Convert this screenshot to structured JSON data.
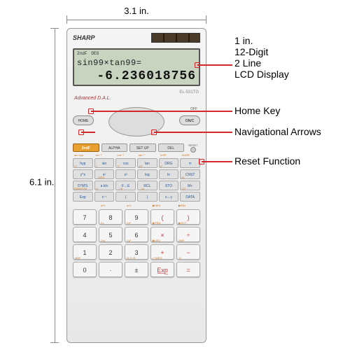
{
  "dimensions": {
    "width_label": "3.1 in.",
    "height_label": "6.1 in."
  },
  "calculator": {
    "brand": "SHARP",
    "model": "EL-531TG",
    "dal_label": "Advanced D.A.L.",
    "lcd": {
      "indicators": [
        "2ndF",
        "DEG"
      ],
      "expression": "sin99×tan99=",
      "result": "-6.236018756"
    },
    "nav": {
      "home_label": "HOME",
      "onc_label": "ON/C",
      "off_label": "OFF",
      "ca_label": "CA",
      "mode_label": "MODE"
    },
    "row2": {
      "second_f": "2ndF",
      "alpha": "ALPHA",
      "alpha_sup": "STAT VAR",
      "setup": "SET UP",
      "del": "DEL",
      "del_sup": "INS",
      "reset_label": "RESET"
    },
    "fn_rows": [
      [
        {
          "l": "hyp",
          "s": "arc hyp"
        },
        {
          "l": "sin",
          "s": "sin⁻¹"
        },
        {
          "l": "cos",
          "s": "cos⁻¹"
        },
        {
          "l": "tan",
          "s": "tan⁻¹"
        },
        {
          "l": "DRG",
          "s": "XOR"
        },
        {
          "l": "π",
          "s": "XNOR"
        }
      ],
      [
        {
          "l": "y^x",
          "s": "ˣ√"
        },
        {
          "l": "x²",
          "s": "√"
        },
        {
          "l": "x³",
          "s": "³√"
        },
        {
          "l": "log",
          "s": "10ˣ"
        },
        {
          "l": "ln",
          "s": "eˣ"
        },
        {
          "l": "CNST",
          "s": ""
        }
      ],
      [
        {
          "l": "D°M'S",
          "s": "←"
        },
        {
          "l": "a b/c",
          "s": "→DEG"
        },
        {
          "l": "F↔E",
          "s": ""
        },
        {
          "l": "RCL",
          "s": ""
        },
        {
          "l": "STO",
          "s": ""
        },
        {
          "l": "M+",
          "s": "M-"
        }
      ],
      [
        {
          "l": "Exp",
          "s": "RANDOM"
        },
        {
          "l": "x⁻¹",
          "s": "n!"
        },
        {
          "l": "(",
          "s": "→rθ"
        },
        {
          "l": ")",
          "s": "→xy"
        },
        {
          "l": "x↔y",
          "s": ","
        },
        {
          "l": "DATA",
          "s": "CD"
        }
      ]
    ],
    "num_rows": [
      [
        {
          "l": "7",
          "s": ""
        },
        {
          "l": "8",
          "s": "nPr"
        },
        {
          "l": "9",
          "s": "nCr"
        },
        {
          "l": "(",
          "s": "▶HEX",
          "op": true
        },
        {
          "l": ")",
          "s": "▶BIN",
          "op": true
        }
      ],
      [
        {
          "l": "4",
          "s": ""
        },
        {
          "l": "5",
          "s": "Σx"
        },
        {
          "l": "6",
          "s": "Σx²"
        },
        {
          "l": "×",
          "s": "▶PEN",
          "op": true
        },
        {
          "l": "÷",
          "s": "▶OCT",
          "op": true
        }
      ],
      [
        {
          "l": "1",
          "s": ""
        },
        {
          "l": "2",
          "s": "Σxy"
        },
        {
          "l": "3",
          "s": "Σy²"
        },
        {
          "l": "+",
          "s": "▶DEC",
          "op": true
        },
        {
          "l": "−",
          "s": "ANS",
          "op": true
        }
      ],
      [
        {
          "l": "0",
          "s": "MDF"
        },
        {
          "l": "·",
          "s": ""
        },
        {
          "l": "±",
          "s": "M-CLR"
        },
        {
          "l": "E̲x̲p̲",
          "s": "(−)NEG",
          "op": true
        },
        {
          "l": "=",
          "s": "%",
          "op": true
        }
      ]
    ]
  },
  "callouts": {
    "display": {
      "l1": "1 in.",
      "l2": "12-Digit",
      "l3": "2 Line",
      "l4": "LCD Display"
    },
    "home": "Home Key",
    "nav": "Navigational Arrows",
    "reset": "Reset Function"
  },
  "colors": {
    "accent_red": "#d8252a",
    "fn_orange": "#e8a030",
    "lcd_bg": "#c8d4c0"
  }
}
